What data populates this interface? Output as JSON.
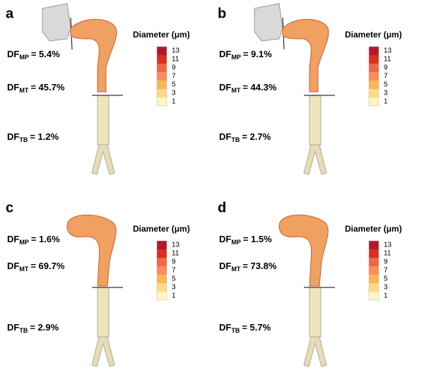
{
  "panels": [
    {
      "label": "a",
      "df": [
        {
          "prefix": "DF",
          "sub": "MP",
          "text": "= 5.4%"
        },
        {
          "prefix": "DF",
          "sub": "MT",
          "text": "= 45.7%"
        },
        {
          "prefix": "DF",
          "sub": "TB",
          "text": "= 1.2%"
        }
      ]
    },
    {
      "label": "b",
      "df": [
        {
          "prefix": "DF",
          "sub": "MP",
          "text": "= 9.1%"
        },
        {
          "prefix": "DF",
          "sub": "MT",
          "text": "= 44.3%"
        },
        {
          "prefix": "DF",
          "sub": "TB",
          "text": "= 2.7%"
        }
      ]
    },
    {
      "label": "c",
      "df": [
        {
          "prefix": "DF",
          "sub": "MP",
          "text": "= 1.6%"
        },
        {
          "prefix": "DF",
          "sub": "MT",
          "text": "= 69.7%"
        },
        {
          "prefix": "DF",
          "sub": "TB",
          "text": "= 2.9%"
        }
      ]
    },
    {
      "label": "d",
      "df": [
        {
          "prefix": "DF",
          "sub": "MP",
          "text": "= 1.5%"
        },
        {
          "prefix": "DF",
          "sub": "MT",
          "text": "= 73.8%"
        },
        {
          "prefix": "DF",
          "sub": "TB",
          "text": "= 5.7%"
        }
      ]
    }
  ],
  "colorbar": {
    "title": "Diameter (μm)",
    "ticks": [
      "13",
      "11",
      "9",
      "7",
      "5",
      "3",
      "1"
    ],
    "colors": [
      "#b2182b",
      "#d7301f",
      "#ef6548",
      "#fc8d59",
      "#fdb557",
      "#fdd98a",
      "#fff5c0"
    ]
  }
}
